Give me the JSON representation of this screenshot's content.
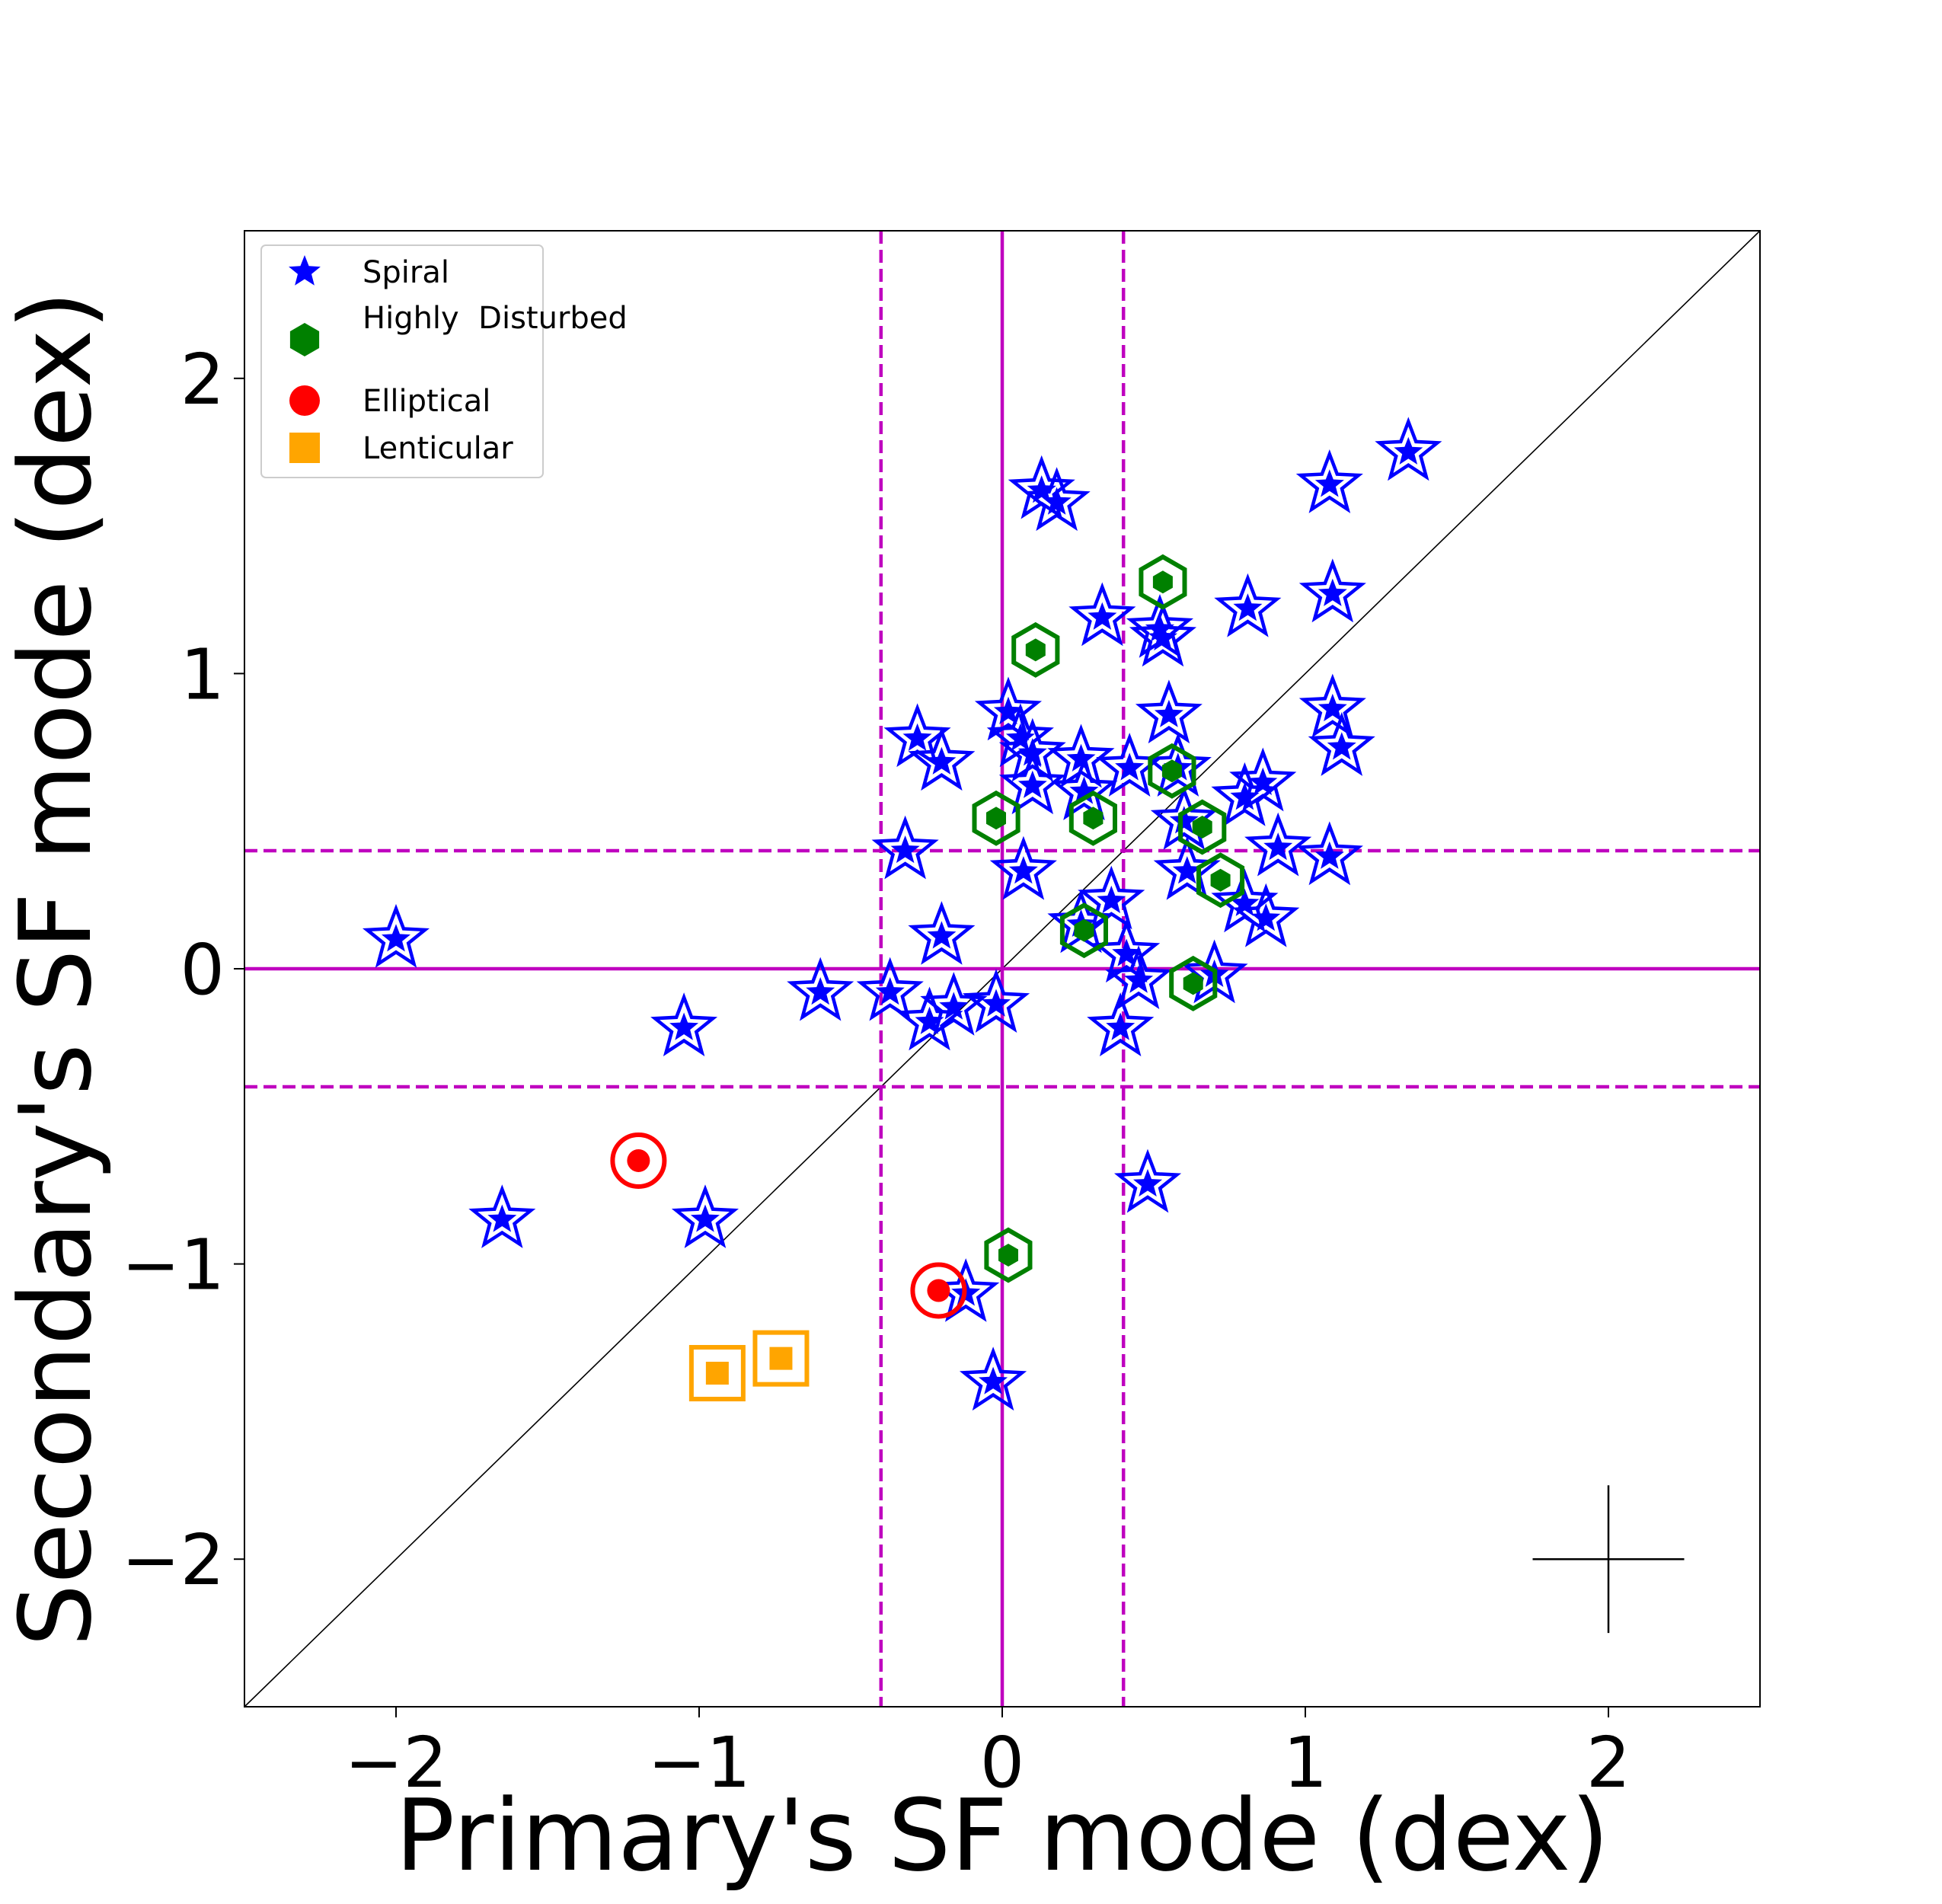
{
  "chart_data": {
    "type": "scatter",
    "xlabel": "Primary's SF mode (dex)",
    "ylabel": "Secondary's SF mode (dex)",
    "xlim": [
      -2.5,
      2.5
    ],
    "ylim": [
      -2.5,
      2.5
    ],
    "xticks": [
      {
        "value": -2,
        "label": "−2"
      },
      {
        "value": -1,
        "label": "−1"
      },
      {
        "value": 0,
        "label": "0"
      },
      {
        "value": 1,
        "label": "1"
      },
      {
        "value": 2,
        "label": "2"
      }
    ],
    "yticks": [
      {
        "value": -2,
        "label": "−2"
      },
      {
        "value": -1,
        "label": "−1"
      },
      {
        "value": 0,
        "label": "0"
      },
      {
        "value": 1,
        "label": "1"
      },
      {
        "value": 2,
        "label": "2"
      }
    ],
    "grid": false,
    "legend_position": "top-left",
    "reference_lines": {
      "diagonal_one_to_one": true,
      "solid_x": 0,
      "solid_y": 0,
      "dashed_x": [
        -0.4,
        0.4
      ],
      "dashed_y": [
        -0.4,
        0.4
      ],
      "line_color": "#bf00bf"
    },
    "error_cross": {
      "x": 2.0,
      "y": -2.0,
      "xerr": 0.25,
      "yerr": 0.25
    },
    "series": [
      {
        "name": "Spiral",
        "marker": "star",
        "color": "#0000ff",
        "points": [
          {
            "x": -2.0,
            "y": 0.1
          },
          {
            "x": -1.65,
            "y": -0.85
          },
          {
            "x": -1.05,
            "y": -0.2
          },
          {
            "x": -0.98,
            "y": -0.85
          },
          {
            "x": -0.6,
            "y": -0.08
          },
          {
            "x": -0.37,
            "y": -0.08
          },
          {
            "x": -0.32,
            "y": 0.4
          },
          {
            "x": -0.28,
            "y": 0.78
          },
          {
            "x": -0.2,
            "y": 0.7
          },
          {
            "x": -0.2,
            "y": 0.11
          },
          {
            "x": -0.24,
            "y": -0.18
          },
          {
            "x": -0.16,
            "y": -0.13
          },
          {
            "x": -0.12,
            "y": -1.1
          },
          {
            "x": -0.03,
            "y": -1.4
          },
          {
            "x": -0.02,
            "y": -0.12
          },
          {
            "x": 0.02,
            "y": 0.87
          },
          {
            "x": 0.06,
            "y": 0.78
          },
          {
            "x": 0.1,
            "y": 0.73
          },
          {
            "x": 0.1,
            "y": 0.62
          },
          {
            "x": 0.07,
            "y": 0.33
          },
          {
            "x": 0.13,
            "y": 1.62
          },
          {
            "x": 0.18,
            "y": 1.58
          },
          {
            "x": 0.26,
            "y": 0.71
          },
          {
            "x": 0.27,
            "y": 0.6
          },
          {
            "x": 0.26,
            "y": 0.15
          },
          {
            "x": 0.33,
            "y": 1.19
          },
          {
            "x": 0.36,
            "y": 0.23
          },
          {
            "x": 0.42,
            "y": 0.68
          },
          {
            "x": 0.41,
            "y": 0.05
          },
          {
            "x": 0.45,
            "y": -0.04
          },
          {
            "x": 0.39,
            "y": -0.2
          },
          {
            "x": 0.48,
            "y": -0.73
          },
          {
            "x": 0.52,
            "y": 1.15
          },
          {
            "x": 0.53,
            "y": 1.12
          },
          {
            "x": 0.55,
            "y": 0.86
          },
          {
            "x": 0.58,
            "y": 0.68
          },
          {
            "x": 0.6,
            "y": 0.5
          },
          {
            "x": 0.61,
            "y": 0.33
          },
          {
            "x": 0.7,
            "y": -0.02
          },
          {
            "x": 0.8,
            "y": 0.58
          },
          {
            "x": 0.86,
            "y": 0.63
          },
          {
            "x": 0.8,
            "y": 0.22
          },
          {
            "x": 0.87,
            "y": 0.17
          },
          {
            "x": 0.91,
            "y": 0.41
          },
          {
            "x": 0.81,
            "y": 1.22
          },
          {
            "x": 1.08,
            "y": 1.64
          },
          {
            "x": 1.09,
            "y": 1.27
          },
          {
            "x": 1.09,
            "y": 0.88
          },
          {
            "x": 1.12,
            "y": 0.75
          },
          {
            "x": 1.08,
            "y": 0.38
          },
          {
            "x": 1.34,
            "y": 1.75
          }
        ]
      },
      {
        "name": "Highly\n Disturbed",
        "marker": "hexagon",
        "color": "#008000",
        "points": [
          {
            "x": -0.02,
            "y": 0.51
          },
          {
            "x": 0.11,
            "y": 1.08
          },
          {
            "x": 0.3,
            "y": 0.51
          },
          {
            "x": 0.27,
            "y": 0.13
          },
          {
            "x": 0.53,
            "y": 1.31
          },
          {
            "x": 0.56,
            "y": 0.67
          },
          {
            "x": 0.66,
            "y": 0.48
          },
          {
            "x": 0.72,
            "y": 0.3
          },
          {
            "x": 0.63,
            "y": -0.05
          },
          {
            "x": 0.02,
            "y": -0.97
          }
        ]
      },
      {
        "name": "Elliptical",
        "marker": "circle",
        "color": "#ff0000",
        "points": [
          {
            "x": -1.2,
            "y": -0.65
          },
          {
            "x": -0.21,
            "y": -1.09
          }
        ]
      },
      {
        "name": "Lenticular",
        "marker": "square",
        "color": "#ffa500",
        "points": [
          {
            "x": -0.94,
            "y": -1.37
          },
          {
            "x": -0.73,
            "y": -1.32
          }
        ]
      }
    ]
  }
}
